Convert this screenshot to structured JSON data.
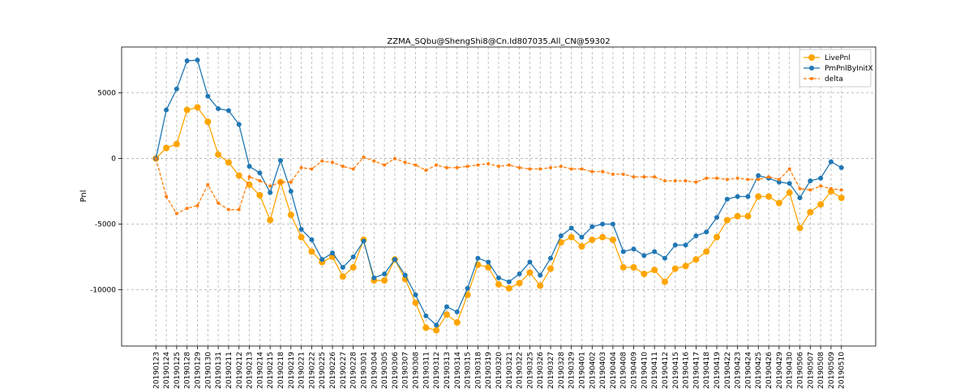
{
  "chart_data": {
    "type": "line",
    "title": "ZZMA_SQbu@ShengShi8@Cn.Id807035.All_CN@59302",
    "y_label": "Pnl",
    "categories": [
      "20190123",
      "20190124",
      "20190125",
      "20190128",
      "20190129",
      "20190130",
      "20190131",
      "20190211",
      "20190212",
      "20190213",
      "20190214",
      "20190215",
      "20190218",
      "20190219",
      "20190221",
      "20190222",
      "20190225",
      "20190226",
      "20190227",
      "20190228",
      "20190301",
      "20190304",
      "20190305",
      "20190306",
      "20190307",
      "20190308",
      "20190311",
      "20190312",
      "20190313",
      "20190314",
      "20190315",
      "20190318",
      "20190319",
      "20190320",
      "20190321",
      "20190322",
      "20190325",
      "20190326",
      "20190327",
      "20190328",
      "20190329",
      "20190401",
      "20190402",
      "20190403",
      "20190404",
      "20190408",
      "20190409",
      "20190410",
      "20190411",
      "20190412",
      "20190415",
      "20190416",
      "20190417",
      "20190418",
      "20190419",
      "20190422",
      "20190423",
      "20190424",
      "20190425",
      "20190426",
      "20190429",
      "20190430",
      "20190506",
      "20190507",
      "20190508",
      "20190509",
      "20190510"
    ],
    "series": [
      {
        "name": "LivePnl",
        "color": "#ffa500",
        "marker_size": 4,
        "dashed": false,
        "values": [
          0,
          800,
          1100,
          3700,
          3900,
          2800,
          300,
          -300,
          -1300,
          -2000,
          -2800,
          -4700,
          -1800,
          -4300,
          -6000,
          -7100,
          -7900,
          -7500,
          -9000,
          -8300,
          -6200,
          -9300,
          -9300,
          -7700,
          -9200,
          -11000,
          -12900,
          -13100,
          -11900,
          -12500,
          -10400,
          -8100,
          -8300,
          -9600,
          -9900,
          -9500,
          -8700,
          -9700,
          -8400,
          -6400,
          -6000,
          -6700,
          -6200,
          -6000,
          -6200,
          -8300,
          -8300,
          -8800,
          -8500,
          -9400,
          -8400,
          -8200,
          -7700,
          -7100,
          -6000,
          -4700,
          -4400,
          -4400,
          -2900,
          -2900,
          -3400,
          -2600,
          -5300,
          -4100,
          -3500,
          -2500,
          -3000
        ]
      },
      {
        "name": "PmPnlByInitX",
        "color": "#1f77b4",
        "marker_size": 3,
        "dashed": false,
        "values": [
          0,
          3700,
          5300,
          7450,
          7500,
          4750,
          3800,
          3650,
          2600,
          -600,
          -1100,
          -2600,
          -150,
          -2500,
          -5400,
          -6200,
          -7700,
          -7200,
          -8300,
          -7500,
          -6300,
          -9100,
          -8800,
          -7700,
          -8900,
          -10400,
          -12000,
          -12700,
          -11300,
          -11700,
          -9900,
          -7600,
          -7900,
          -9100,
          -9400,
          -8800,
          -7900,
          -8900,
          -7600,
          -5900,
          -5300,
          -6000,
          -5200,
          -5000,
          -5000,
          -7100,
          -6900,
          -7400,
          -7100,
          -7600,
          -6600,
          -6600,
          -5900,
          -5600,
          -4500,
          -3100,
          -2900,
          -2900,
          -1300,
          -1500,
          -1800,
          -1900,
          -3000,
          -1700,
          -1500,
          -250,
          -700
        ]
      },
      {
        "name": "delta",
        "color": "#ff7f0e",
        "marker_size": 2,
        "dashed": true,
        "values": [
          0,
          -2900,
          -4200,
          -3800,
          -3600,
          -2000,
          -3400,
          -3900,
          -3900,
          -1400,
          -1700,
          -2100,
          -1800,
          -1800,
          -700,
          -800,
          -200,
          -300,
          -600,
          -800,
          100,
          -200,
          -500,
          0,
          -300,
          -500,
          -900,
          -500,
          -700,
          -700,
          -600,
          -500,
          -400,
          -600,
          -500,
          -700,
          -800,
          -800,
          -700,
          -600,
          -800,
          -800,
          -1000,
          -1000,
          -1200,
          -1200,
          -1400,
          -1400,
          -1400,
          -1700,
          -1700,
          -1700,
          -1800,
          -1500,
          -1500,
          -1600,
          -1500,
          -1600,
          -1600,
          -1400,
          -1600,
          -800,
          -2300,
          -2400,
          -2100,
          -2300,
          -2400
        ]
      }
    ],
    "ylim": [
      -14300,
      8500
    ],
    "yticks": [
      -10000,
      -5000,
      0,
      5000
    ],
    "grid": true,
    "legend": "upper right"
  }
}
